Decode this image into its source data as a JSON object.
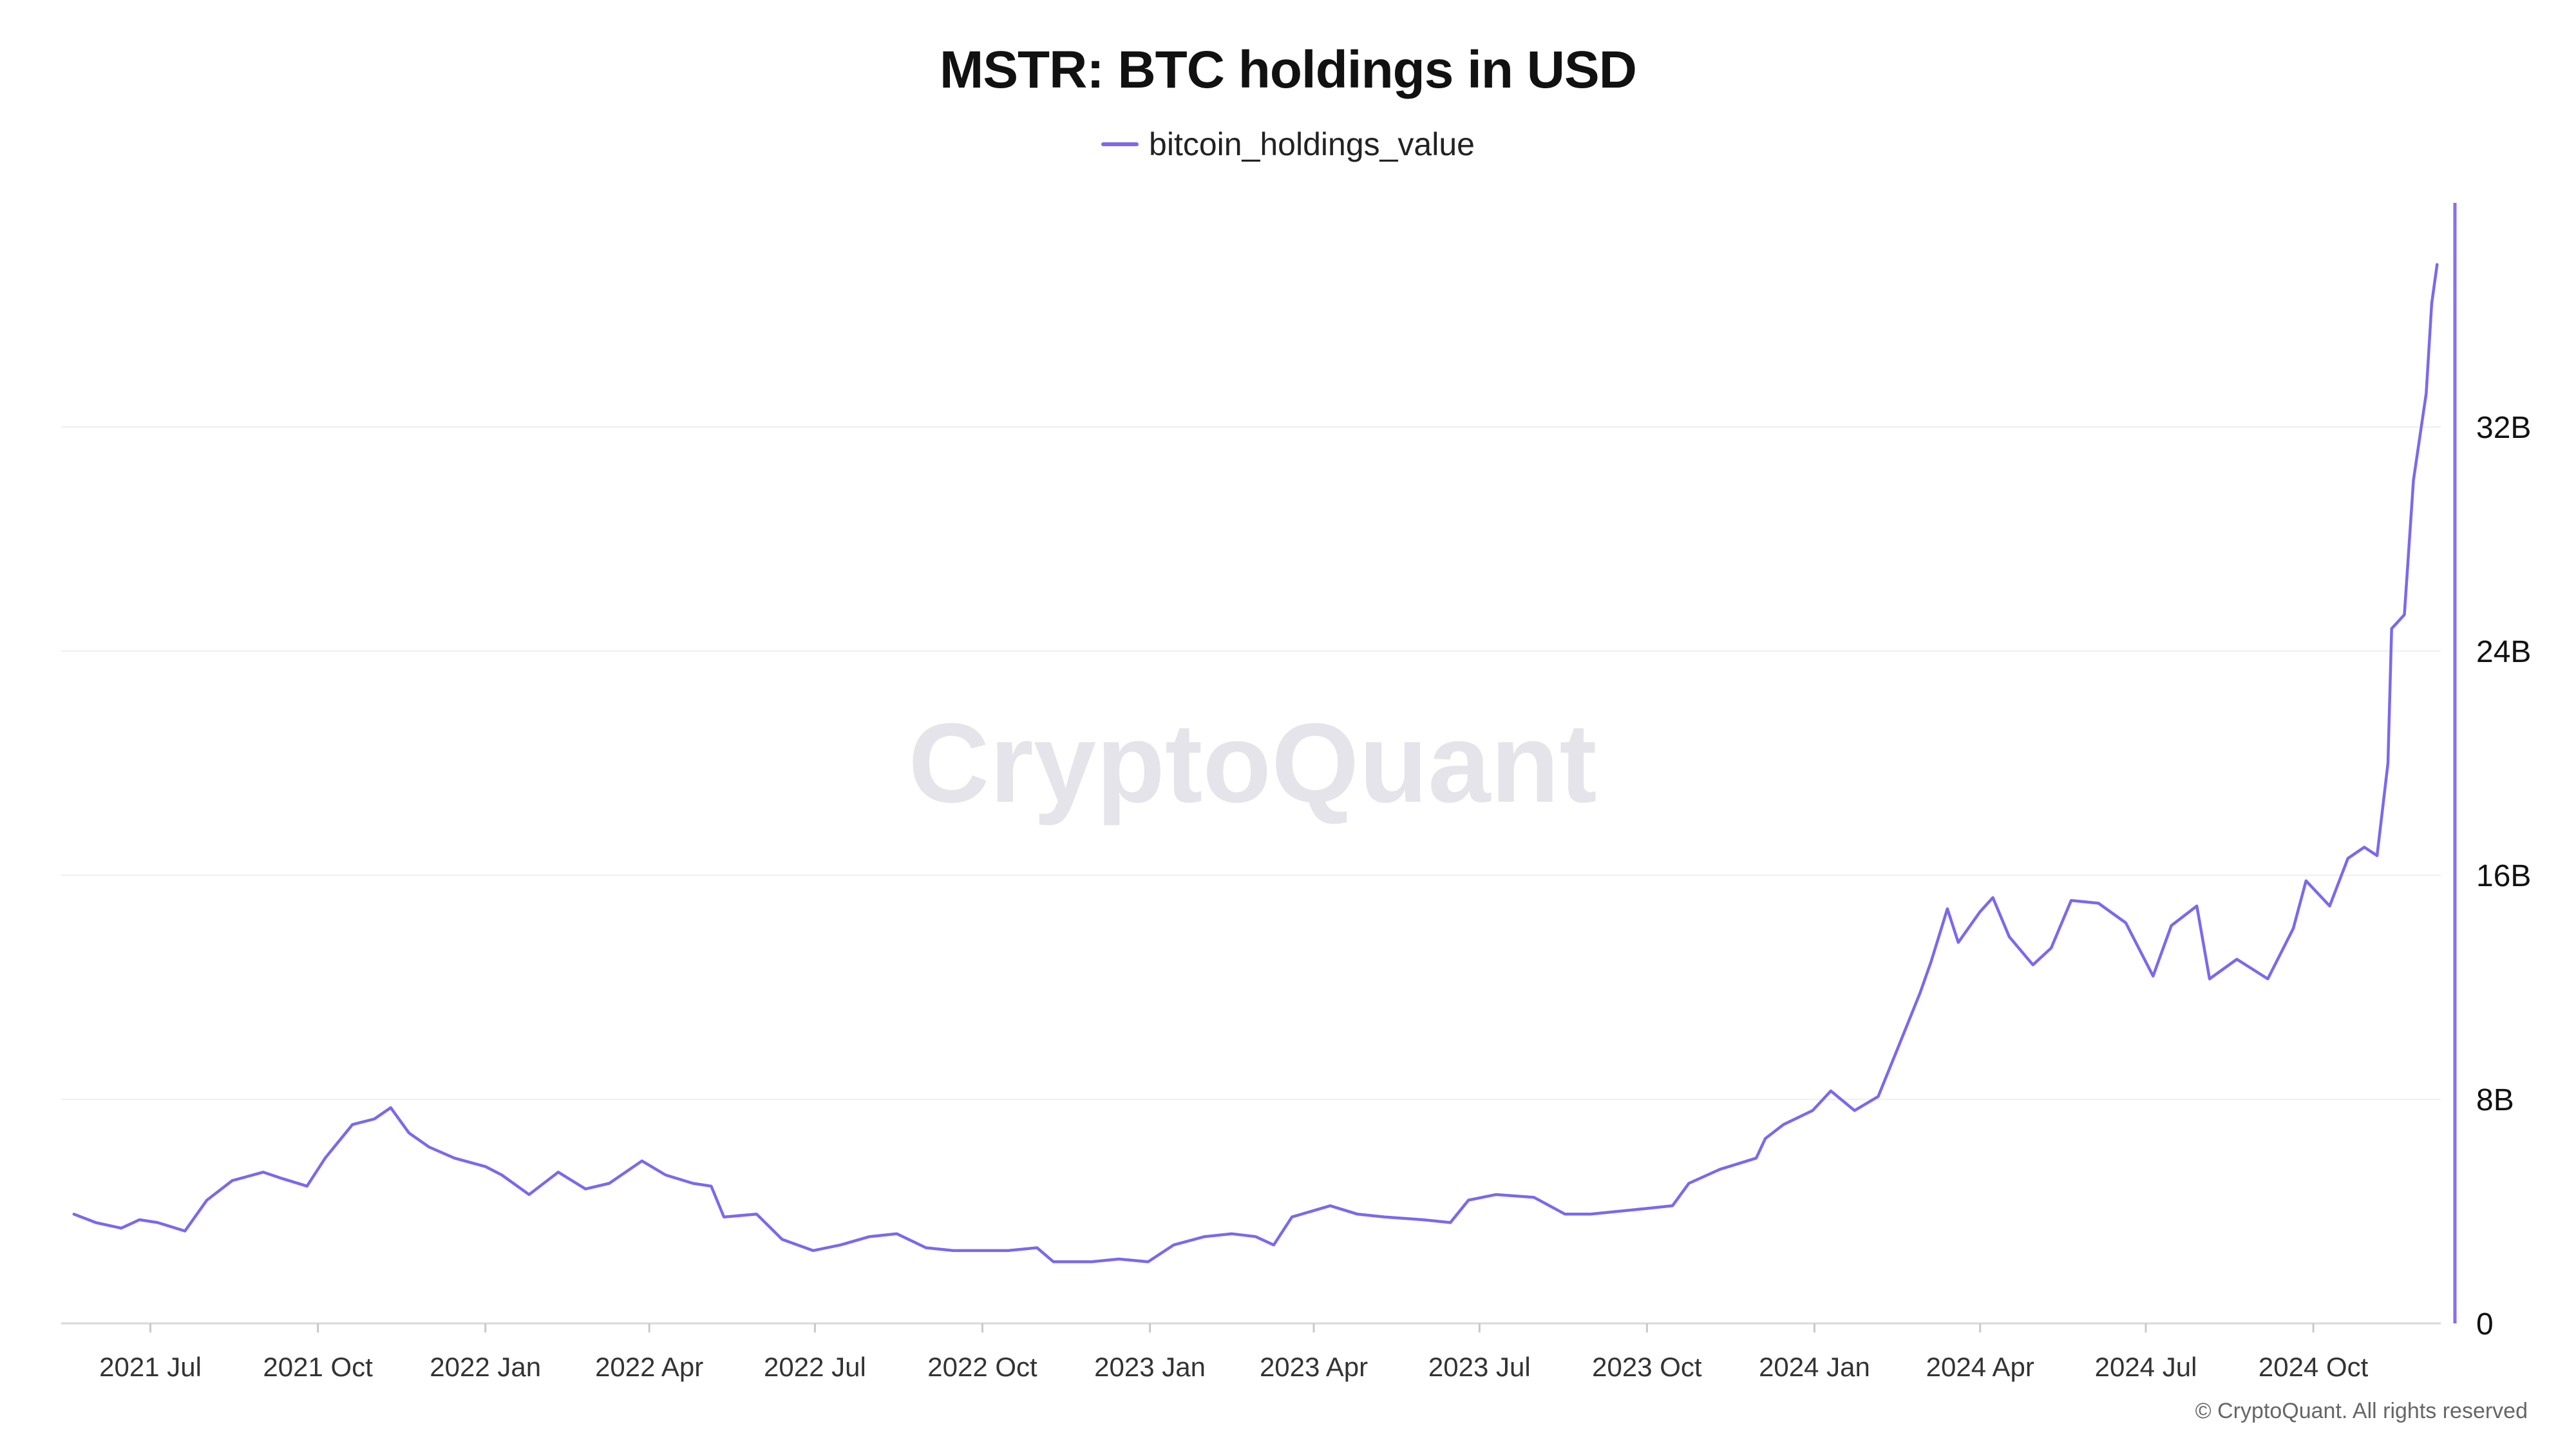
{
  "chart": {
    "title": "MSTR: BTC holdings in USD",
    "watermark": "CryptoQuant",
    "copyright": "© CryptoQuant. All rights reserved",
    "line_color": "#7B68EE",
    "axis_color": "#8A6CF0"
  },
  "chart_data": {
    "type": "line",
    "title": "MSTR: BTC holdings in USD",
    "xlabel": "",
    "ylabel": "",
    "legend": {
      "position": "top-center",
      "entries": [
        "bitcoin_holdings_value"
      ]
    },
    "grid": true,
    "y_axis_side": "right",
    "x_tick_labels": [
      "2021 Jul",
      "2021 Oct",
      "2022 Jan",
      "2022 Apr",
      "2022 Jul",
      "2022 Oct",
      "2023 Jan",
      "2023 Apr",
      "2023 Jul",
      "2023 Oct",
      "2024 Jan",
      "2024 Apr",
      "2024 Jul",
      "2024 Oct"
    ],
    "x_tick_dates": [
      "2021-07-01",
      "2021-10-01",
      "2022-01-01",
      "2022-04-01",
      "2022-07-01",
      "2022-10-01",
      "2023-01-01",
      "2023-04-01",
      "2023-07-01",
      "2023-10-01",
      "2024-01-01",
      "2024-04-01",
      "2024-07-01",
      "2024-10-01"
    ],
    "y_tick_labels": [
      "0",
      "8B",
      "16B",
      "24B",
      "32B"
    ],
    "y_tick_values": [
      0,
      8000000000,
      16000000000,
      24000000000,
      32000000000
    ],
    "xlim": [
      "2021-05-13",
      "2024-12-10"
    ],
    "ylim": [
      0,
      40000000000
    ],
    "series": [
      {
        "name": "bitcoin_holdings_value",
        "color": "#7B68EE",
        "points": [
          [
            "2021-05-20",
            3900000000.0
          ],
          [
            "2021-06-01",
            3600000000.0
          ],
          [
            "2021-06-15",
            3400000000.0
          ],
          [
            "2021-06-25",
            3700000000.0
          ],
          [
            "2021-07-05",
            3600000000.0
          ],
          [
            "2021-07-20",
            3300000000.0
          ],
          [
            "2021-08-01",
            4400000000.0
          ],
          [
            "2021-08-15",
            5100000000.0
          ],
          [
            "2021-09-01",
            5400000000.0
          ],
          [
            "2021-09-10",
            5200000000.0
          ],
          [
            "2021-09-25",
            4900000000.0
          ],
          [
            "2021-10-05",
            5900000000.0
          ],
          [
            "2021-10-20",
            7100000000.0
          ],
          [
            "2021-11-01",
            7300000000.0
          ],
          [
            "2021-11-10",
            7700000000.0
          ],
          [
            "2021-11-20",
            6800000000.0
          ],
          [
            "2021-12-01",
            6300000000.0
          ],
          [
            "2021-12-15",
            5900000000.0
          ],
          [
            "2022-01-01",
            5600000000.0
          ],
          [
            "2022-01-10",
            5300000000.0
          ],
          [
            "2022-01-25",
            4600000000.0
          ],
          [
            "2022-02-10",
            5400000000.0
          ],
          [
            "2022-02-25",
            4800000000.0
          ],
          [
            "2022-03-10",
            5000000000.0
          ],
          [
            "2022-03-28",
            5800000000.0
          ],
          [
            "2022-04-10",
            5300000000.0
          ],
          [
            "2022-04-25",
            5000000000.0
          ],
          [
            "2022-05-05",
            4900000000.0
          ],
          [
            "2022-05-12",
            3800000000.0
          ],
          [
            "2022-05-30",
            3900000000.0
          ],
          [
            "2022-06-13",
            3000000000.0
          ],
          [
            "2022-06-30",
            2600000000.0
          ],
          [
            "2022-07-15",
            2800000000.0
          ],
          [
            "2022-07-31",
            3100000000.0
          ],
          [
            "2022-08-15",
            3200000000.0
          ],
          [
            "2022-08-31",
            2700000000.0
          ],
          [
            "2022-09-15",
            2600000000.0
          ],
          [
            "2022-09-30",
            2600000000.0
          ],
          [
            "2022-10-15",
            2600000000.0
          ],
          [
            "2022-10-31",
            2700000000.0
          ],
          [
            "2022-11-09",
            2200000000.0
          ],
          [
            "2022-11-30",
            2200000000.0
          ],
          [
            "2022-12-15",
            2300000000.0
          ],
          [
            "2022-12-31",
            2200000000.0
          ],
          [
            "2023-01-14",
            2800000000.0
          ],
          [
            "2023-01-31",
            3100000000.0
          ],
          [
            "2023-02-15",
            3200000000.0
          ],
          [
            "2023-02-28",
            3100000000.0
          ],
          [
            "2023-03-10",
            2800000000.0
          ],
          [
            "2023-03-20",
            3800000000.0
          ],
          [
            "2023-04-10",
            4200000000.0
          ],
          [
            "2023-04-25",
            3900000000.0
          ],
          [
            "2023-05-10",
            3800000000.0
          ],
          [
            "2023-05-31",
            3700000000.0
          ],
          [
            "2023-06-15",
            3600000000.0
          ],
          [
            "2023-06-25",
            4400000000.0
          ],
          [
            "2023-07-10",
            4600000000.0
          ],
          [
            "2023-07-31",
            4500000000.0
          ],
          [
            "2023-08-17",
            3900000000.0
          ],
          [
            "2023-08-31",
            3900000000.0
          ],
          [
            "2023-09-15",
            4000000000.0
          ],
          [
            "2023-09-30",
            4100000000.0
          ],
          [
            "2023-10-15",
            4200000000.0
          ],
          [
            "2023-10-24",
            5000000000.0
          ],
          [
            "2023-11-10",
            5500000000.0
          ],
          [
            "2023-11-30",
            5900000000.0
          ],
          [
            "2023-12-05",
            6600000000.0
          ],
          [
            "2023-12-15",
            7100000000.0
          ],
          [
            "2023-12-31",
            7600000000.0
          ],
          [
            "2024-01-10",
            8300000000.0
          ],
          [
            "2024-01-23",
            7600000000.0
          ],
          [
            "2024-02-05",
            8100000000.0
          ],
          [
            "2024-02-15",
            9700000000.0
          ],
          [
            "2024-02-28",
            11800000000.0
          ],
          [
            "2024-03-05",
            12900000000.0
          ],
          [
            "2024-03-14",
            14800000000.0
          ],
          [
            "2024-03-20",
            13600000000.0
          ],
          [
            "2024-04-01",
            14700000000.0
          ],
          [
            "2024-04-08",
            15200000000.0
          ],
          [
            "2024-04-17",
            13800000000.0
          ],
          [
            "2024-04-30",
            12800000000.0
          ],
          [
            "2024-05-10",
            13400000000.0
          ],
          [
            "2024-05-21",
            15100000000.0
          ],
          [
            "2024-06-05",
            15000000000.0
          ],
          [
            "2024-06-20",
            14300000000.0
          ],
          [
            "2024-07-05",
            12400000000.0
          ],
          [
            "2024-07-15",
            14200000000.0
          ],
          [
            "2024-07-29",
            14900000000.0
          ],
          [
            "2024-08-05",
            12300000000.0
          ],
          [
            "2024-08-20",
            13000000000.0
          ],
          [
            "2024-09-06",
            12300000000.0
          ],
          [
            "2024-09-20",
            14100000000.0
          ],
          [
            "2024-09-27",
            15800000000.0
          ],
          [
            "2024-10-10",
            14900000000.0
          ],
          [
            "2024-10-20",
            16600000000.0
          ],
          [
            "2024-10-29",
            17000000000.0
          ],
          [
            "2024-11-05",
            16700000000.0
          ],
          [
            "2024-11-11",
            20000000000.0
          ],
          [
            "2024-11-13",
            24800000000.0
          ],
          [
            "2024-11-20",
            25300000000.0
          ],
          [
            "2024-11-25",
            30100000000.0
          ],
          [
            "2024-12-02",
            33200000000.0
          ],
          [
            "2024-12-05",
            36400000000.0
          ],
          [
            "2024-12-08",
            37800000000.0
          ]
        ]
      }
    ]
  }
}
